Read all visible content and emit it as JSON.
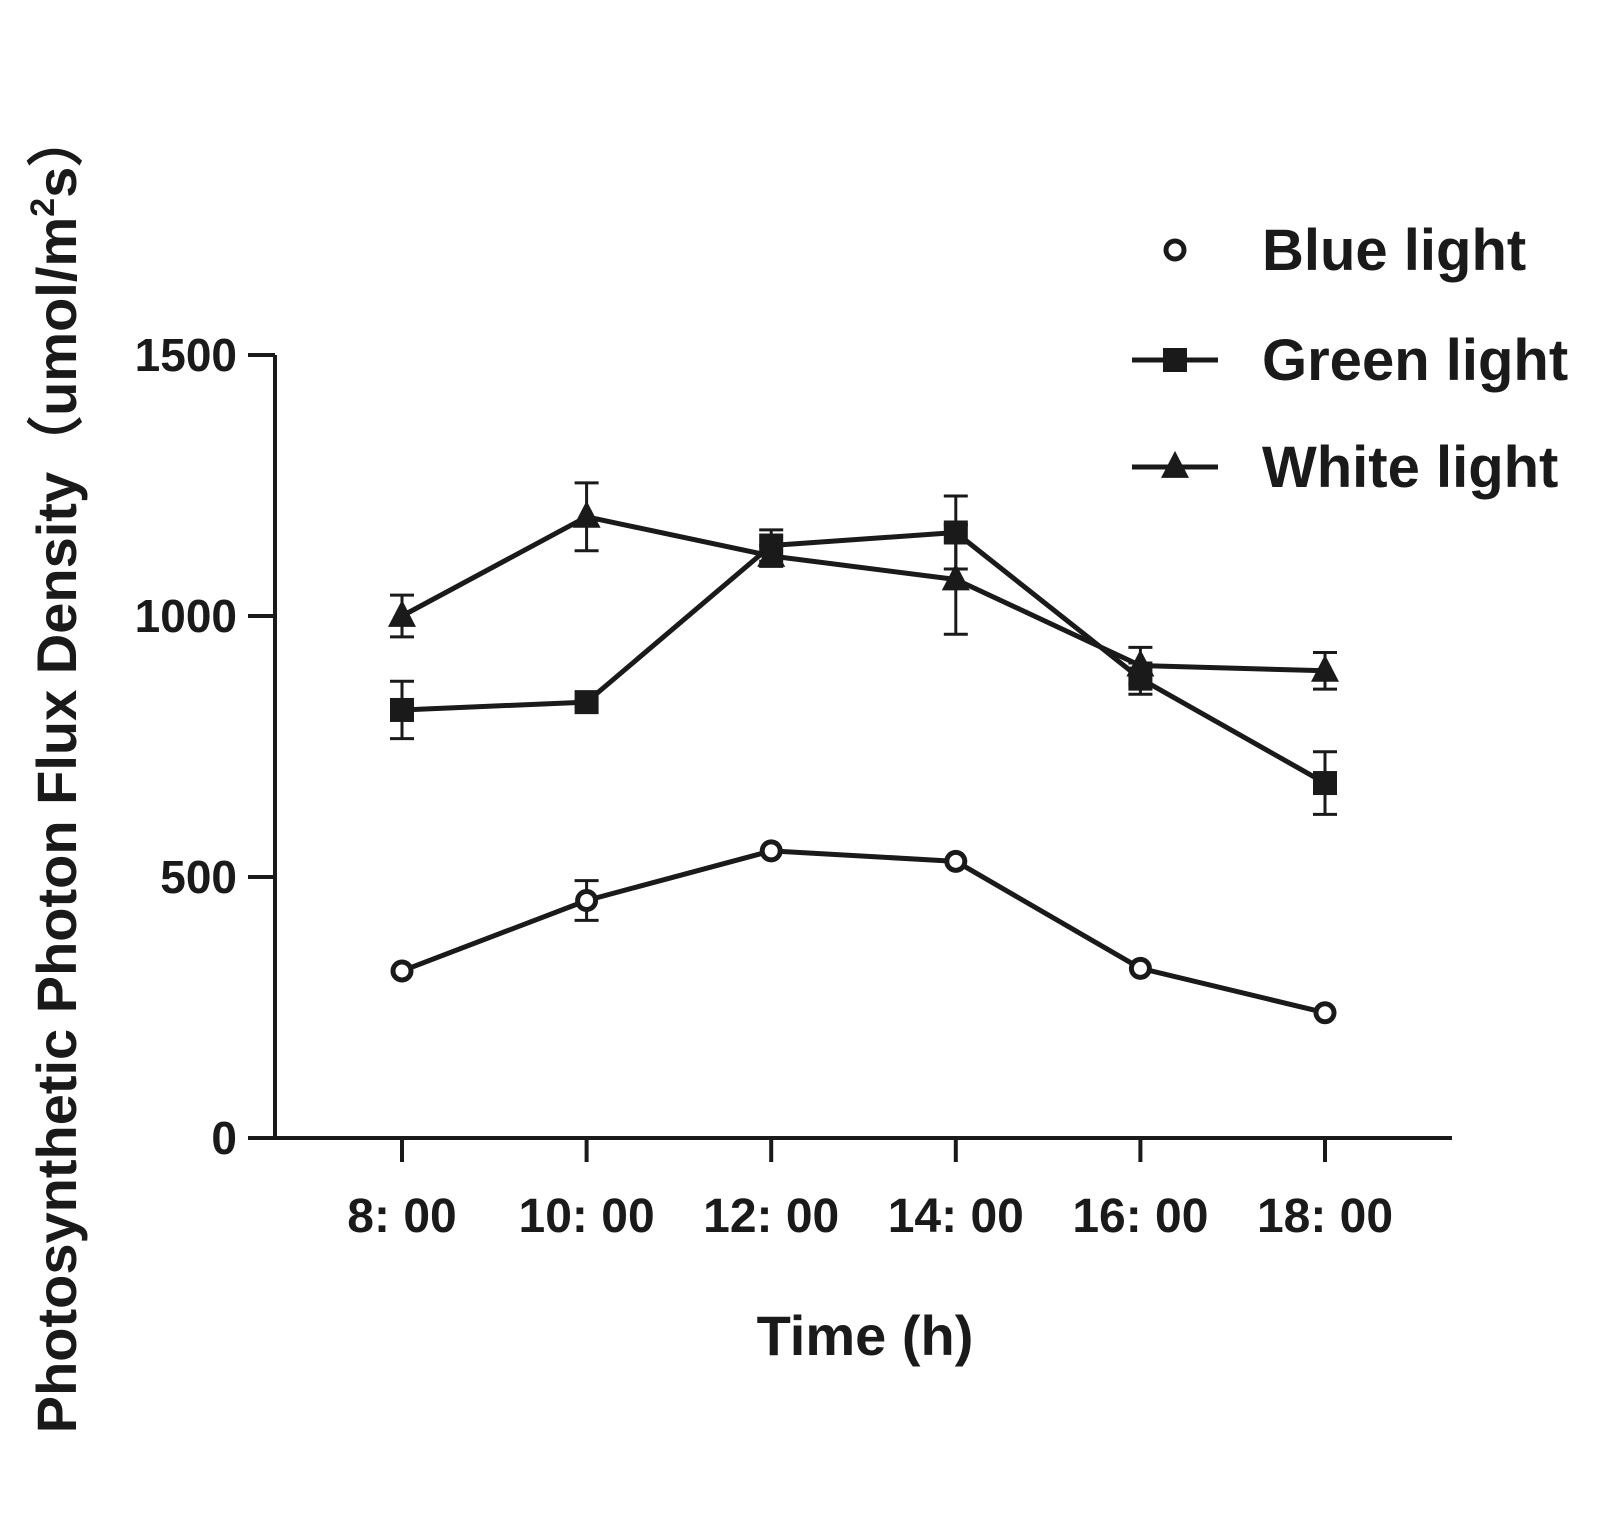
{
  "chart_data": {
    "type": "line",
    "title": "",
    "xlabel": "Time (h)",
    "ylabel_main": "Photosynthetic Photon Flux Density（umol/m",
    "ylabel_sup": "2",
    "ylabel_end": "s）",
    "categories": [
      "8: 00",
      "10: 00",
      "12: 00",
      "14: 00",
      "16: 00",
      "18: 00"
    ],
    "ylim": [
      0,
      1500
    ],
    "yticks": [
      "0",
      "500",
      "1000",
      "1500"
    ],
    "ytick_values": [
      0,
      500,
      1000,
      1500
    ],
    "legend_position": "top-right",
    "series": [
      {
        "name": "Blue light",
        "marker": "circle",
        "values": [
          320,
          455,
          550,
          530,
          325,
          240
        ],
        "errors": [
          0,
          38,
          0,
          0,
          0,
          0
        ]
      },
      {
        "name": "Green light",
        "marker": "square",
        "values": [
          820,
          835,
          1135,
          1160,
          880,
          680
        ],
        "errors": [
          55,
          0,
          30,
          70,
          30,
          60
        ]
      },
      {
        "name": "White light",
        "marker": "triangle",
        "values": [
          1000,
          1190,
          1115,
          1070,
          905,
          895
        ],
        "errors": [
          40,
          65,
          20,
          105,
          35,
          35
        ]
      }
    ],
    "colors": {
      "line": "#1a1a1a",
      "background": "#ffffff"
    }
  }
}
